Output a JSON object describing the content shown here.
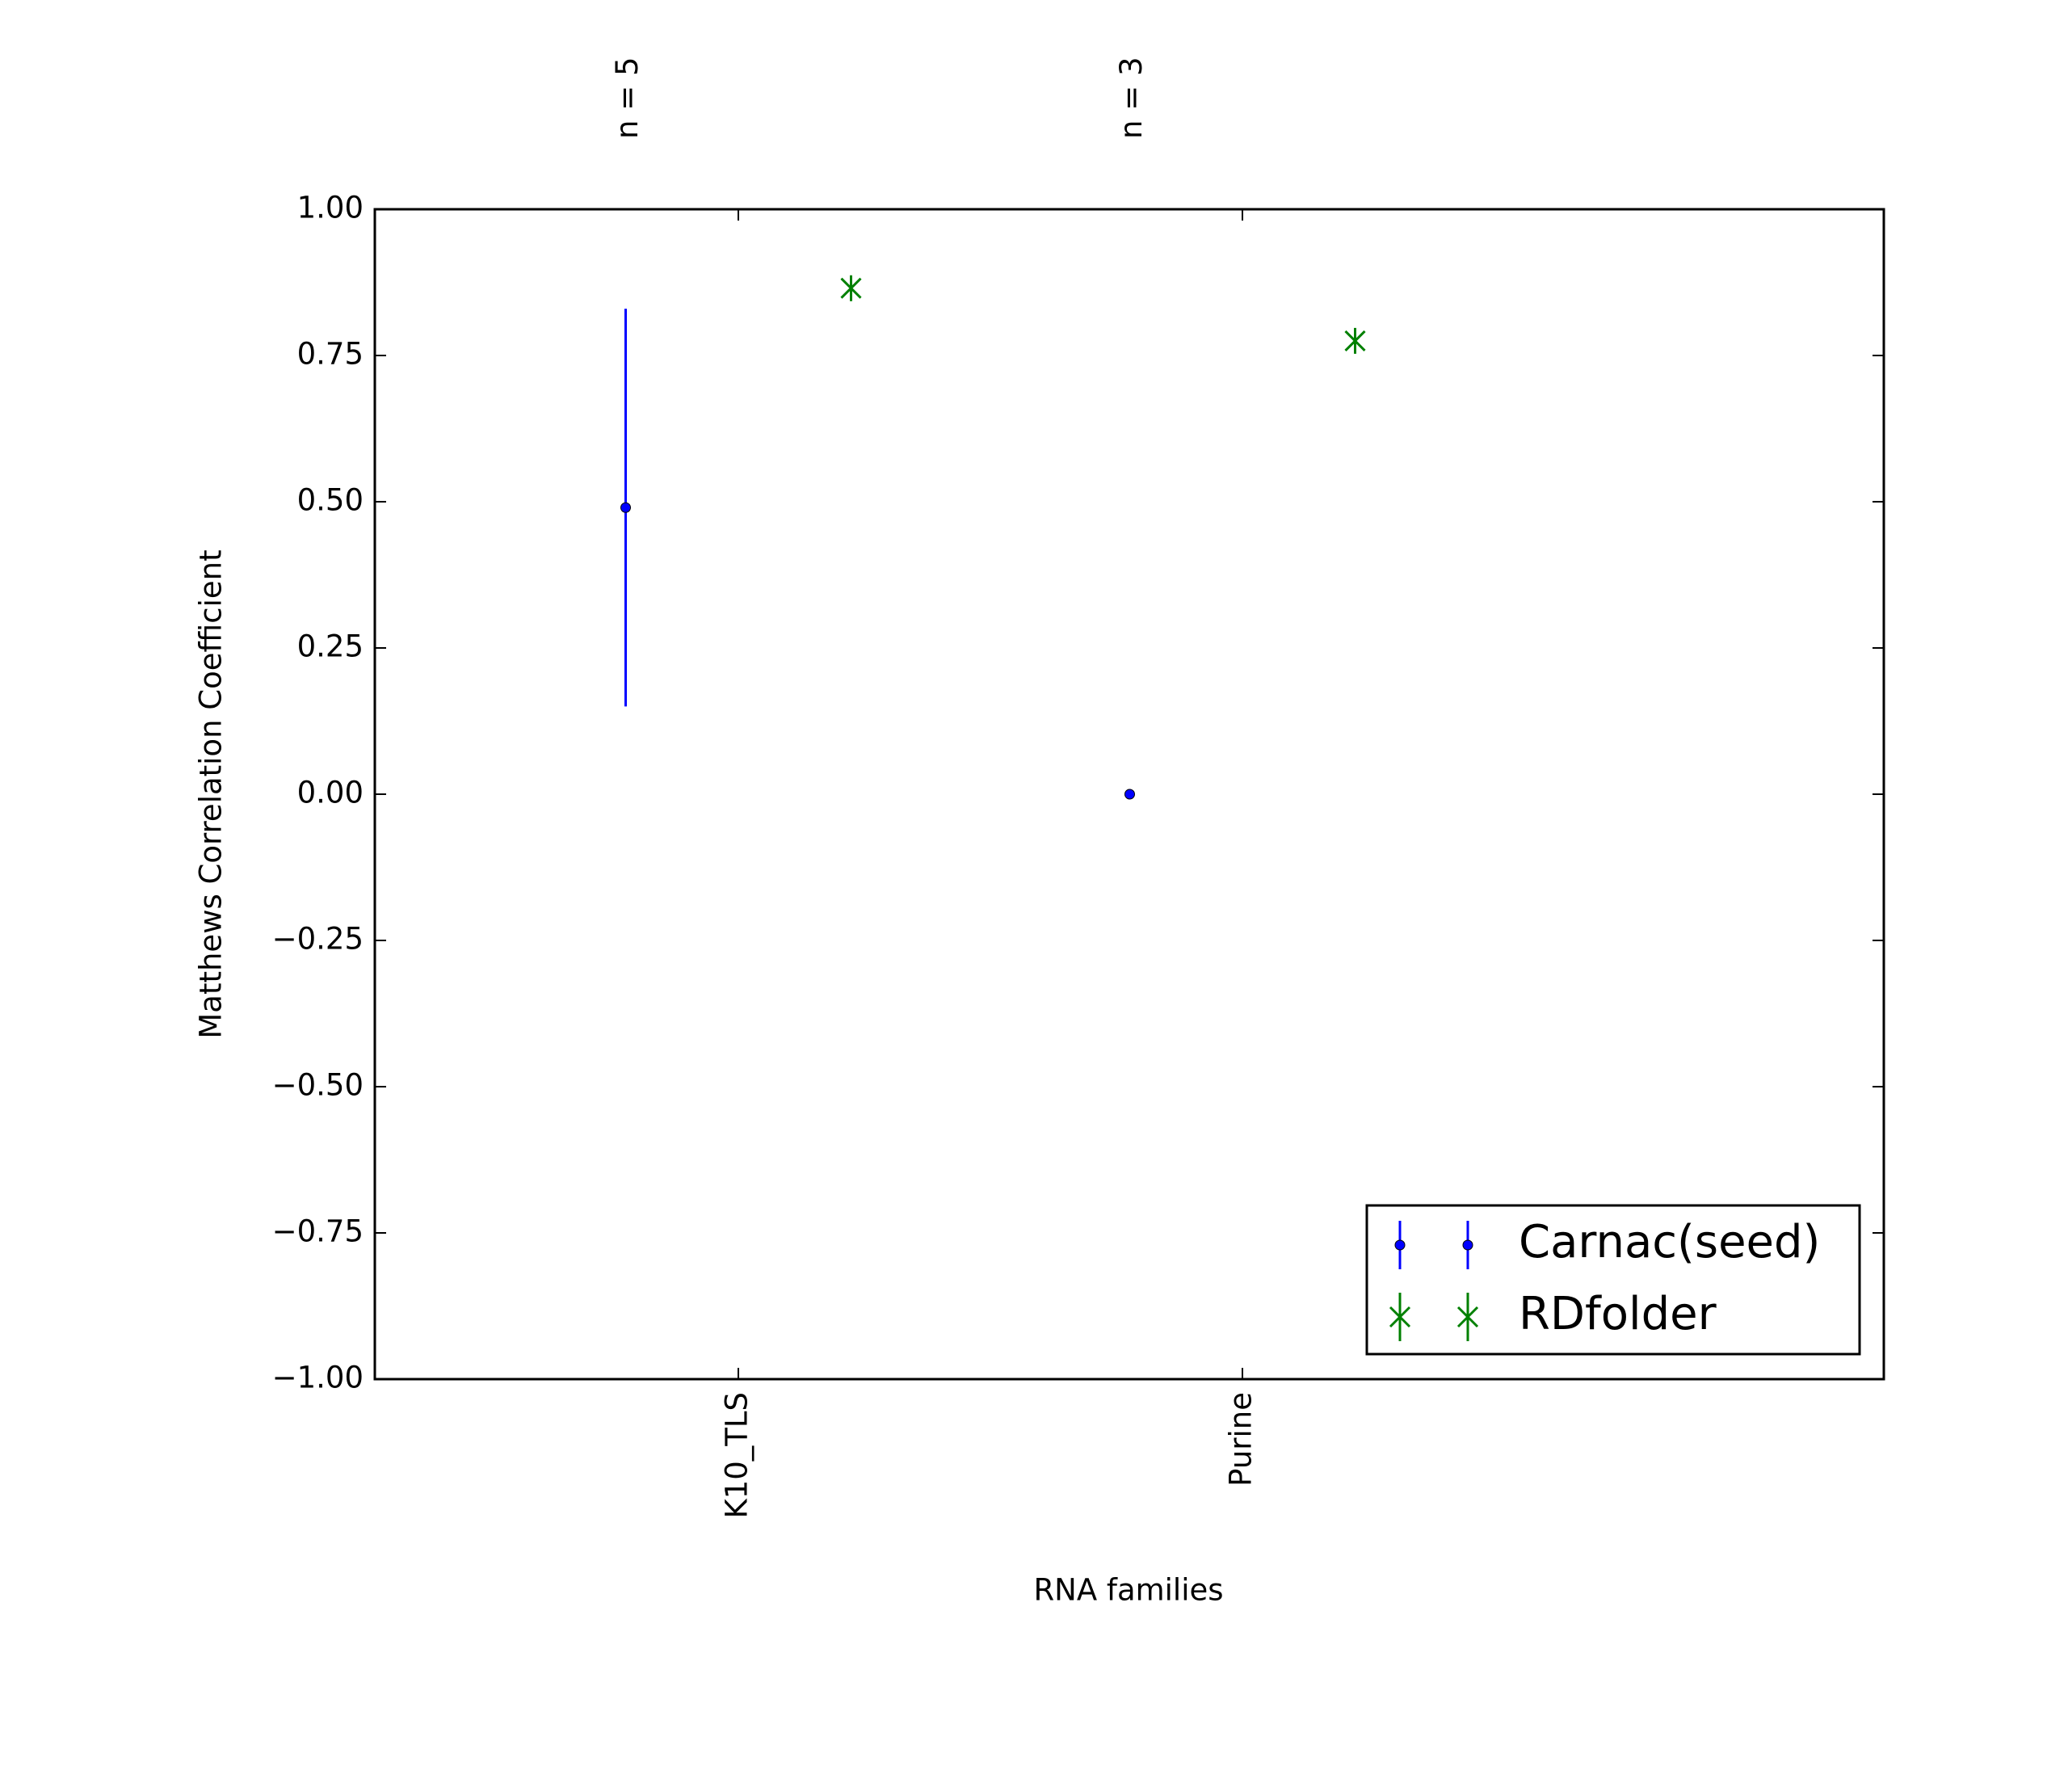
{
  "chart_data": {
    "type": "errorbar",
    "xlabel": "RNA families",
    "ylabel": "Matthews Correlation Coefficient",
    "categories": [
      "K10_TLS",
      "Purine"
    ],
    "annotations": [
      "n = 5",
      "n = 3"
    ],
    "series": [
      {
        "name": "Carnac(seed)",
        "color": "#0000ff",
        "marker": "dot",
        "values": [
          0.49,
          0.0
        ],
        "errors": [
          0.34,
          0.0
        ]
      },
      {
        "name": "RDfolder",
        "color": "#008000",
        "marker": "x",
        "values": [
          0.865,
          0.775
        ],
        "errors": [
          0.02,
          0.02
        ]
      }
    ],
    "ylim": [
      -1,
      1
    ],
    "yticks": [
      {
        "value": -1,
        "label": "−1.00"
      },
      {
        "value": -0.75,
        "label": "−0.75"
      },
      {
        "value": -0.5,
        "label": "−0.50"
      },
      {
        "value": -0.25,
        "label": "−0.25"
      },
      {
        "value": 0,
        "label": "0.00"
      },
      {
        "value": 0.25,
        "label": "0.25"
      },
      {
        "value": 0.5,
        "label": "0.50"
      },
      {
        "value": 0.75,
        "label": "0.75"
      },
      {
        "value": 1,
        "label": "1.00"
      }
    ],
    "legend": "lower right",
    "grid": false
  }
}
